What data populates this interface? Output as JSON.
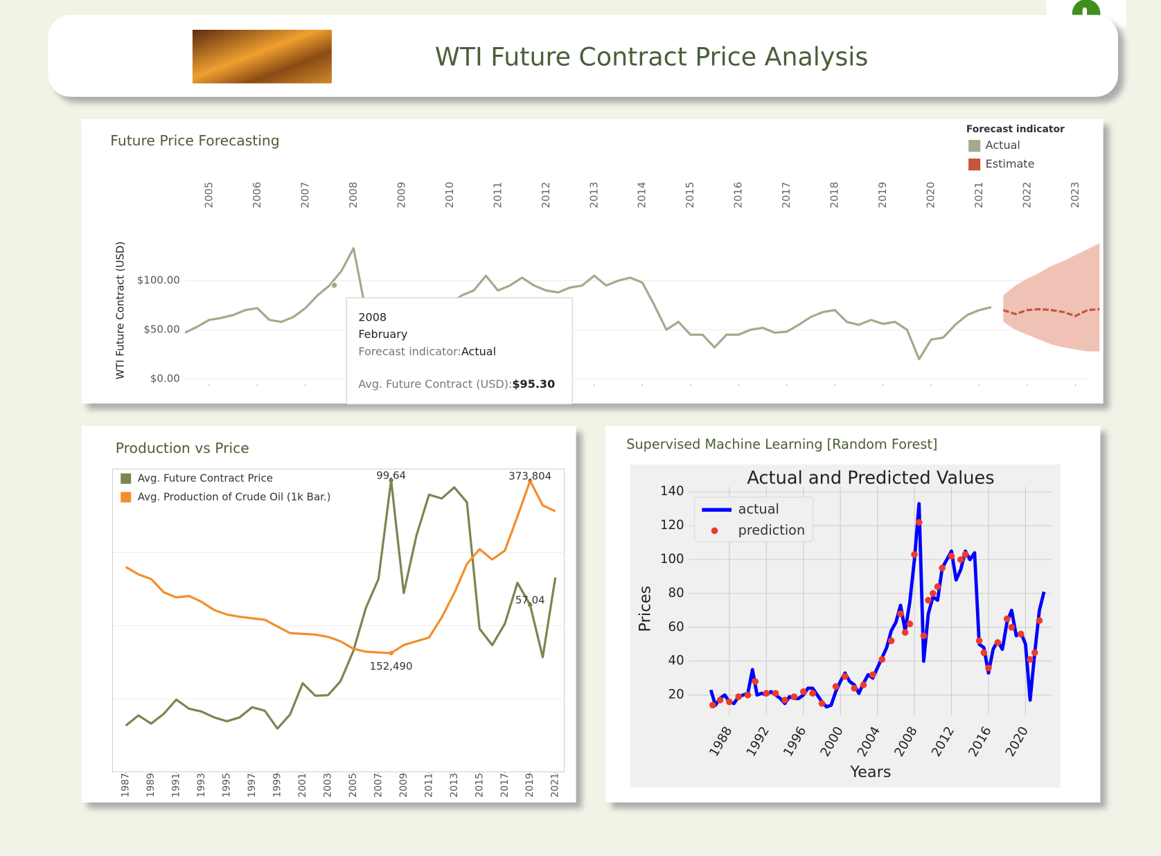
{
  "header": {
    "title": "WTI Future Contract Price Analysis"
  },
  "chart_data": [
    {
      "type": "line",
      "title": "Future Price Forecasting",
      "ylabel": "WTI Future Contract (USD)",
      "legend_title": "Forecast indicator",
      "legend": "top-right",
      "grid": true,
      "xlim": [
        2005,
        2024
      ],
      "xticks": [
        {
          "value": 2005.5,
          "label": "2005"
        },
        {
          "value": 2006.5,
          "label": "2006"
        },
        {
          "value": 2007.5,
          "label": "2007"
        },
        {
          "value": 2008.5,
          "label": "2008"
        },
        {
          "value": 2009.5,
          "label": "2009"
        },
        {
          "value": 2010.5,
          "label": "2010"
        },
        {
          "value": 2011.5,
          "label": "2011"
        },
        {
          "value": 2012.5,
          "label": "2012"
        },
        {
          "value": 2013.5,
          "label": "2013"
        },
        {
          "value": 2014.5,
          "label": "2014"
        },
        {
          "value": 2015.5,
          "label": "2015"
        },
        {
          "value": 2016.5,
          "label": "2016"
        },
        {
          "value": 2017.5,
          "label": "2017"
        },
        {
          "value": 2018.5,
          "label": "2018"
        },
        {
          "value": 2019.5,
          "label": "2019"
        },
        {
          "value": 2020.5,
          "label": "2020"
        },
        {
          "value": 2021.5,
          "label": "2021"
        },
        {
          "value": 2022.5,
          "label": "2022"
        },
        {
          "value": 2023.5,
          "label": "2023"
        }
      ],
      "ylim": [
        -5,
        145
      ],
      "yticks": [
        {
          "value": 0,
          "label": "$0.00"
        },
        {
          "value": 50,
          "label": "$50.00"
        },
        {
          "value": 100,
          "label": "$100.00"
        }
      ],
      "series": [
        {
          "name": "Actual",
          "color": "#a4aa8b",
          "x": [
            2005,
            2005.25,
            2005.5,
            2005.75,
            2006,
            2006.25,
            2006.5,
            2006.75,
            2007,
            2007.25,
            2007.5,
            2007.75,
            2008,
            2008.25,
            2008.5,
            2008.75,
            2009,
            2009.25,
            2009.5,
            2009.75,
            2010,
            2010.25,
            2010.5,
            2010.75,
            2011,
            2011.25,
            2011.5,
            2011.75,
            2012,
            2012.25,
            2012.5,
            2012.75,
            2013,
            2013.25,
            2013.5,
            2013.75,
            2014,
            2014.25,
            2014.5,
            2014.75,
            2015,
            2015.25,
            2015.5,
            2015.75,
            2016,
            2016.25,
            2016.5,
            2016.75,
            2017,
            2017.25,
            2017.5,
            2017.75,
            2018,
            2018.25,
            2018.5,
            2018.75,
            2019,
            2019.25,
            2019.5,
            2019.75,
            2020,
            2020.25,
            2020.5,
            2020.75,
            2021,
            2021.25,
            2021.5,
            2021.75
          ],
          "values": [
            47,
            53,
            60,
            62,
            65,
            70,
            72,
            60,
            58,
            63,
            72,
            85,
            95,
            110,
            133,
            70,
            42,
            55,
            70,
            76,
            78,
            77,
            76,
            85,
            90,
            105,
            90,
            95,
            103,
            95,
            90,
            88,
            93,
            95,
            105,
            95,
            100,
            103,
            98,
            75,
            50,
            58,
            45,
            45,
            32,
            45,
            45,
            50,
            52,
            47,
            48,
            55,
            63,
            68,
            70,
            58,
            55,
            60,
            56,
            58,
            50,
            20,
            40,
            42,
            55,
            65,
            70,
            73
          ]
        },
        {
          "name": "Estimate",
          "color": "#c4553a",
          "band_color": "#f0c2b5",
          "x": [
            2022,
            2022.25,
            2022.5,
            2022.75,
            2023,
            2023.25,
            2023.5,
            2023.75,
            2024
          ],
          "values": [
            70,
            66,
            70,
            71,
            70,
            68,
            64,
            70,
            71
          ],
          "lower": [
            58,
            50,
            45,
            40,
            35,
            32,
            30,
            28,
            28
          ],
          "upper": [
            85,
            95,
            102,
            108,
            115,
            120,
            126,
            132,
            138
          ]
        }
      ],
      "tooltip": {
        "year": "2008",
        "month": "February",
        "indicator_label": "Forecast indicator:",
        "indicator": "Actual",
        "measure_label": "Avg. Future Contract (USD):",
        "x": 2008.1,
        "value": 95.3,
        "value_label": "$95.30"
      }
    },
    {
      "type": "line",
      "title": "Production vs Price",
      "legend": "top-left",
      "grid": true,
      "x": [
        1987,
        1988,
        1989,
        1990,
        1991,
        1992,
        1993,
        1994,
        1995,
        1996,
        1997,
        1998,
        1999,
        2000,
        2001,
        2002,
        2003,
        2004,
        2005,
        2006,
        2007,
        2008,
        2009,
        2010,
        2011,
        2012,
        2013,
        2014,
        2015,
        2016,
        2017,
        2018,
        2019,
        2020,
        2021
      ],
      "xlim": [
        1985.95,
        2021.7
      ],
      "xticks": [
        1987,
        1989,
        1991,
        1993,
        1995,
        1997,
        1999,
        2001,
        2003,
        2005,
        2007,
        2009,
        2011,
        2013,
        2015,
        2017,
        2019,
        2021
      ],
      "ylim": [
        0,
        103.5
      ],
      "yticks": [
        25,
        50,
        75
      ],
      "y2lim": [
        0,
        389000
      ],
      "series": [
        {
          "name": "Avg. Future Contract Price",
          "color": "#7b8551",
          "values": [
            15.8,
            19.3,
            16.5,
            19.8,
            24.7,
            21.6,
            20.6,
            18.6,
            17.3,
            18.6,
            22.1,
            20.9,
            14.8,
            19.6,
            30.3,
            26.0,
            26.2,
            31.0,
            41.2,
            56.0,
            65.9,
            99.64,
            61.1,
            80.7,
            94.7,
            93.4,
            97.2,
            92.1,
            48.9,
            43.3,
            50.6,
            64.6,
            57.04,
            39.2,
            66.4
          ],
          "value_labels": [
            null,
            null,
            null,
            null,
            null,
            null,
            null,
            null,
            null,
            null,
            null,
            null,
            null,
            null,
            null,
            null,
            null,
            null,
            null,
            null,
            null,
            "99.64",
            null,
            null,
            null,
            null,
            null,
            null,
            null,
            null,
            null,
            null,
            "57.04",
            null,
            null
          ]
        },
        {
          "name": "Avg. Production of Crude Oil (1k Bar.)",
          "color": "#f28e2b",
          "axis": "y2",
          "values": [
            263117,
            253576,
            247850,
            230670,
            223990,
            225900,
            218270,
            207770,
            202050,
            199180,
            197270,
            195370,
            186780,
            178200,
            177240,
            176280,
            173420,
            167690,
            158150,
            154330,
            153380,
            152490,
            162930,
            167690,
            172460,
            198230,
            229720,
            266930,
            286010,
            272660,
            284110,
            328000,
            373804,
            342320,
            334680
          ],
          "value_labels": [
            null,
            null,
            null,
            null,
            null,
            null,
            null,
            null,
            null,
            null,
            null,
            null,
            null,
            null,
            null,
            null,
            null,
            null,
            null,
            null,
            null,
            "152,490",
            null,
            null,
            null,
            null,
            null,
            null,
            null,
            null,
            null,
            null,
            "373,804",
            null,
            null
          ]
        }
      ]
    },
    {
      "type": "line",
      "panel_title": "Supervised Machine Learning [Random Forest]",
      "title": "Actual and Predicted Values",
      "xlabel": "Years",
      "ylabel": "Prices",
      "legend": "top-left",
      "grid": true,
      "xlim": [
        1983.6,
        2022.8
      ],
      "xticks": [
        1988,
        1992,
        1996,
        2000,
        2004,
        2008,
        2012,
        2016,
        2020
      ],
      "ylim": [
        8,
        143
      ],
      "yticks": [
        20,
        40,
        60,
        80,
        100,
        120,
        140
      ],
      "series": [
        {
          "name": "actual",
          "color": "#0000ff",
          "x": [
            1986,
            1986.5,
            1987,
            1987.5,
            1988,
            1988.5,
            1989,
            1989.5,
            1990,
            1990.5,
            1991,
            1991.5,
            1992,
            1992.5,
            1993,
            1993.5,
            1994,
            1994.5,
            1995,
            1995.5,
            1996,
            1996.5,
            1997,
            1997.5,
            1998,
            1998.5,
            1999,
            1999.5,
            2000,
            2000.5,
            2001,
            2001.5,
            2002,
            2002.5,
            2003,
            2003.5,
            2004,
            2004.5,
            2005,
            2005.5,
            2006,
            2006.5,
            2007,
            2007.5,
            2008,
            2008.5,
            2009,
            2009.5,
            2010,
            2010.5,
            2011,
            2011.5,
            2012,
            2012.5,
            2013,
            2013.5,
            2014,
            2014.5,
            2015,
            2015.5,
            2016,
            2016.5,
            2017,
            2017.5,
            2018,
            2018.5,
            2019,
            2019.5,
            2020,
            2020.5,
            2021,
            2021.5,
            2022
          ],
          "values": [
            23,
            14,
            18,
            20,
            16,
            15,
            19,
            20,
            21,
            35,
            20,
            21,
            20,
            22,
            20,
            18,
            15,
            19,
            18,
            18,
            20,
            24,
            24,
            20,
            16,
            13,
            14,
            22,
            28,
            33,
            28,
            26,
            21,
            27,
            32,
            30,
            36,
            42,
            48,
            58,
            63,
            73,
            58,
            75,
            100,
            133,
            40,
            68,
            78,
            76,
            95,
            100,
            105,
            88,
            94,
            105,
            100,
            104,
            50,
            48,
            33,
            47,
            52,
            47,
            63,
            70,
            55,
            57,
            50,
            17,
            45,
            70,
            81
          ]
        },
        {
          "name": "prediction",
          "color": "#ee3b2b",
          "marker": "dot",
          "x": [
            1986.2,
            1987,
            1988,
            1989,
            1990,
            1990.8,
            1992,
            1993,
            1994,
            1995,
            1996,
            1997,
            1998,
            1999.5,
            2000.5,
            2001.5,
            2002.5,
            2003.5,
            2004.5,
            2005.5,
            2006.5,
            2007,
            2007.5,
            2008,
            2008.5,
            2009,
            2009.5,
            2010,
            2010.5,
            2011,
            2012,
            2013,
            2013.5,
            2015,
            2015.5,
            2016,
            2017,
            2018,
            2018.5,
            2019.5,
            2020.5,
            2021,
            2021.5
          ],
          "values": [
            14,
            17,
            16,
            19,
            20,
            28,
            21,
            21,
            17,
            19,
            22,
            21,
            15,
            25,
            31,
            24,
            26,
            32,
            41,
            52,
            68,
            57,
            62,
            103,
            122,
            55,
            76,
            80,
            84,
            95,
            102,
            100,
            103,
            52,
            45,
            36,
            51,
            65,
            60,
            56,
            41,
            45,
            64
          ]
        }
      ]
    }
  ]
}
